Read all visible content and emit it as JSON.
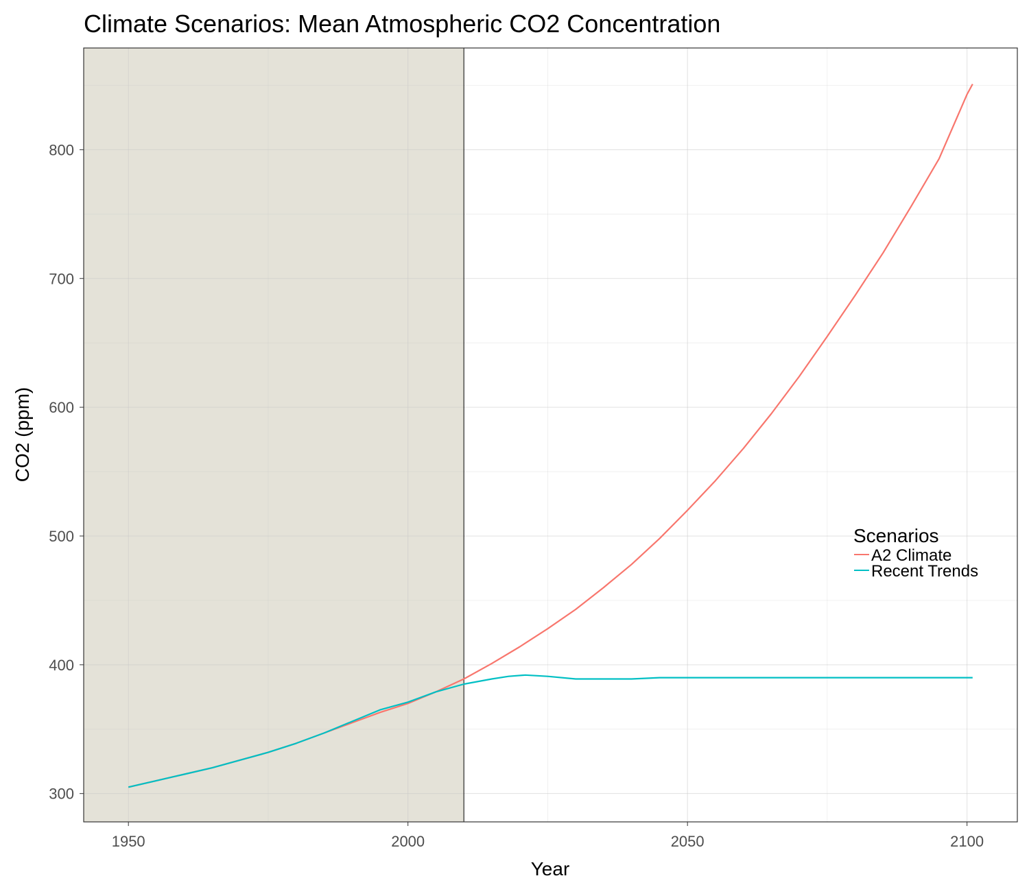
{
  "chart_data": {
    "type": "line",
    "title": "Climate Scenarios: Mean Atmospheric CO2 Concentration",
    "xlabel": "Year",
    "ylabel": "CO2 (ppm)",
    "xlim": [
      1942,
      2109
    ],
    "ylim": [
      278,
      879
    ],
    "x_ticks": [
      1950,
      2000,
      2050,
      2100
    ],
    "y_ticks": [
      300,
      400,
      500,
      600,
      700,
      800
    ],
    "grid": true,
    "shaded_region": {
      "x_start": 1942,
      "x_end": 2010,
      "color": "#e4e2d8"
    },
    "vertical_line": {
      "x": 2010
    },
    "legend": {
      "title": "Scenarios",
      "position": "right"
    },
    "series": [
      {
        "name": "A2 Climate",
        "color": "#f8766d",
        "x": [
          1950,
          1955,
          1960,
          1965,
          1970,
          1975,
          1980,
          1985,
          1990,
          1995,
          2000,
          2005,
          2010,
          2015,
          2020,
          2025,
          2030,
          2035,
          2040,
          2045,
          2050,
          2055,
          2060,
          2065,
          2070,
          2075,
          2080,
          2085,
          2090,
          2095,
          2100,
          2101
        ],
        "values": [
          305,
          310,
          315,
          320,
          326,
          332,
          339,
          347,
          355,
          363,
          370,
          379,
          389,
          401,
          414,
          428,
          443,
          460,
          478,
          498,
          520,
          543,
          568,
          595,
          624,
          655,
          687,
          720,
          756,
          793,
          843,
          851
        ]
      },
      {
        "name": "Recent Trends",
        "color": "#00bfc4",
        "x": [
          1950,
          1955,
          1960,
          1965,
          1970,
          1975,
          1980,
          1985,
          1990,
          1995,
          2000,
          2005,
          2010,
          2015,
          2018,
          2021,
          2025,
          2030,
          2035,
          2040,
          2045,
          2050,
          2055,
          2060,
          2065,
          2070,
          2075,
          2080,
          2085,
          2090,
          2095,
          2101
        ],
        "values": [
          305,
          310,
          315,
          320,
          326,
          332,
          339,
          347,
          356,
          365,
          371,
          379,
          385,
          389,
          391,
          392,
          391,
          389,
          389,
          389,
          390,
          390,
          390,
          390,
          390,
          390,
          390,
          390,
          390,
          390,
          390,
          390
        ]
      }
    ]
  }
}
